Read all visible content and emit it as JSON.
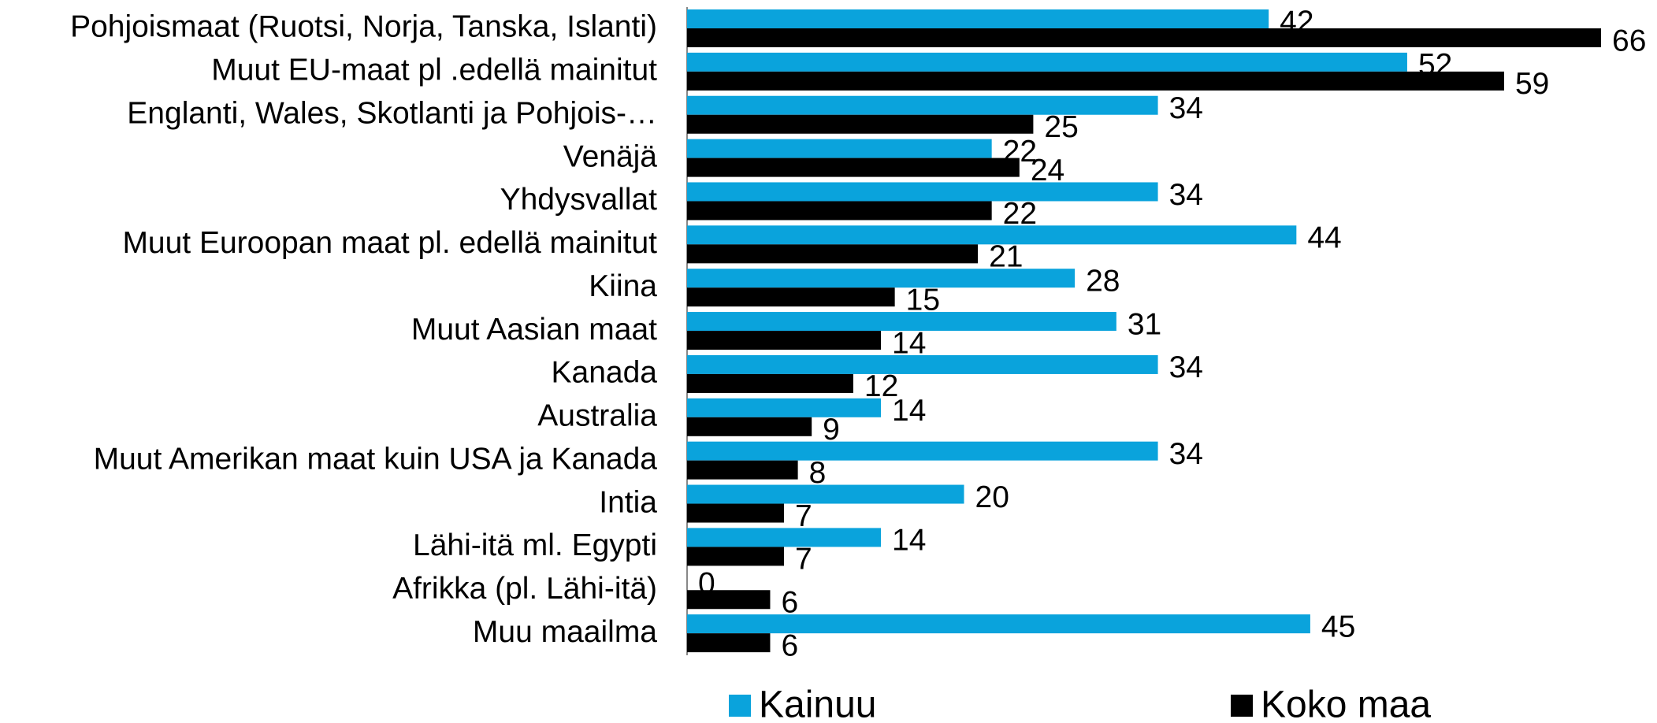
{
  "chart_data": {
    "type": "bar",
    "orientation": "horizontal",
    "categories": [
      "Pohjoismaat (Ruotsi, Norja, Tanska, Islanti)",
      "Muut EU-maat pl .edellä mainitut",
      "Englanti, Wales, Skotlanti ja Pohjois-…",
      "Venäjä",
      "Yhdysvallat",
      "Muut Euroopan maat pl. edellä mainitut",
      "Kiina",
      "Muut Aasian maat",
      "Kanada",
      "Australia",
      "Muut Amerikan maat kuin USA ja Kanada",
      "Intia",
      "Lähi-itä ml. Egypti",
      "Afrikka (pl. Lähi-itä)",
      "Muu maailma"
    ],
    "series": [
      {
        "name": "Kainuu",
        "color": "#0aa3dc",
        "values": [
          42,
          52,
          34,
          22,
          34,
          44,
          28,
          31,
          34,
          14,
          34,
          20,
          14,
          0,
          45
        ]
      },
      {
        "name": "Koko maa",
        "color": "#000000",
        "values": [
          66,
          59,
          25,
          24,
          22,
          21,
          15,
          14,
          12,
          9,
          8,
          7,
          7,
          6,
          6
        ]
      }
    ],
    "xlim": [
      0,
      66
    ],
    "legend": "bottom"
  }
}
